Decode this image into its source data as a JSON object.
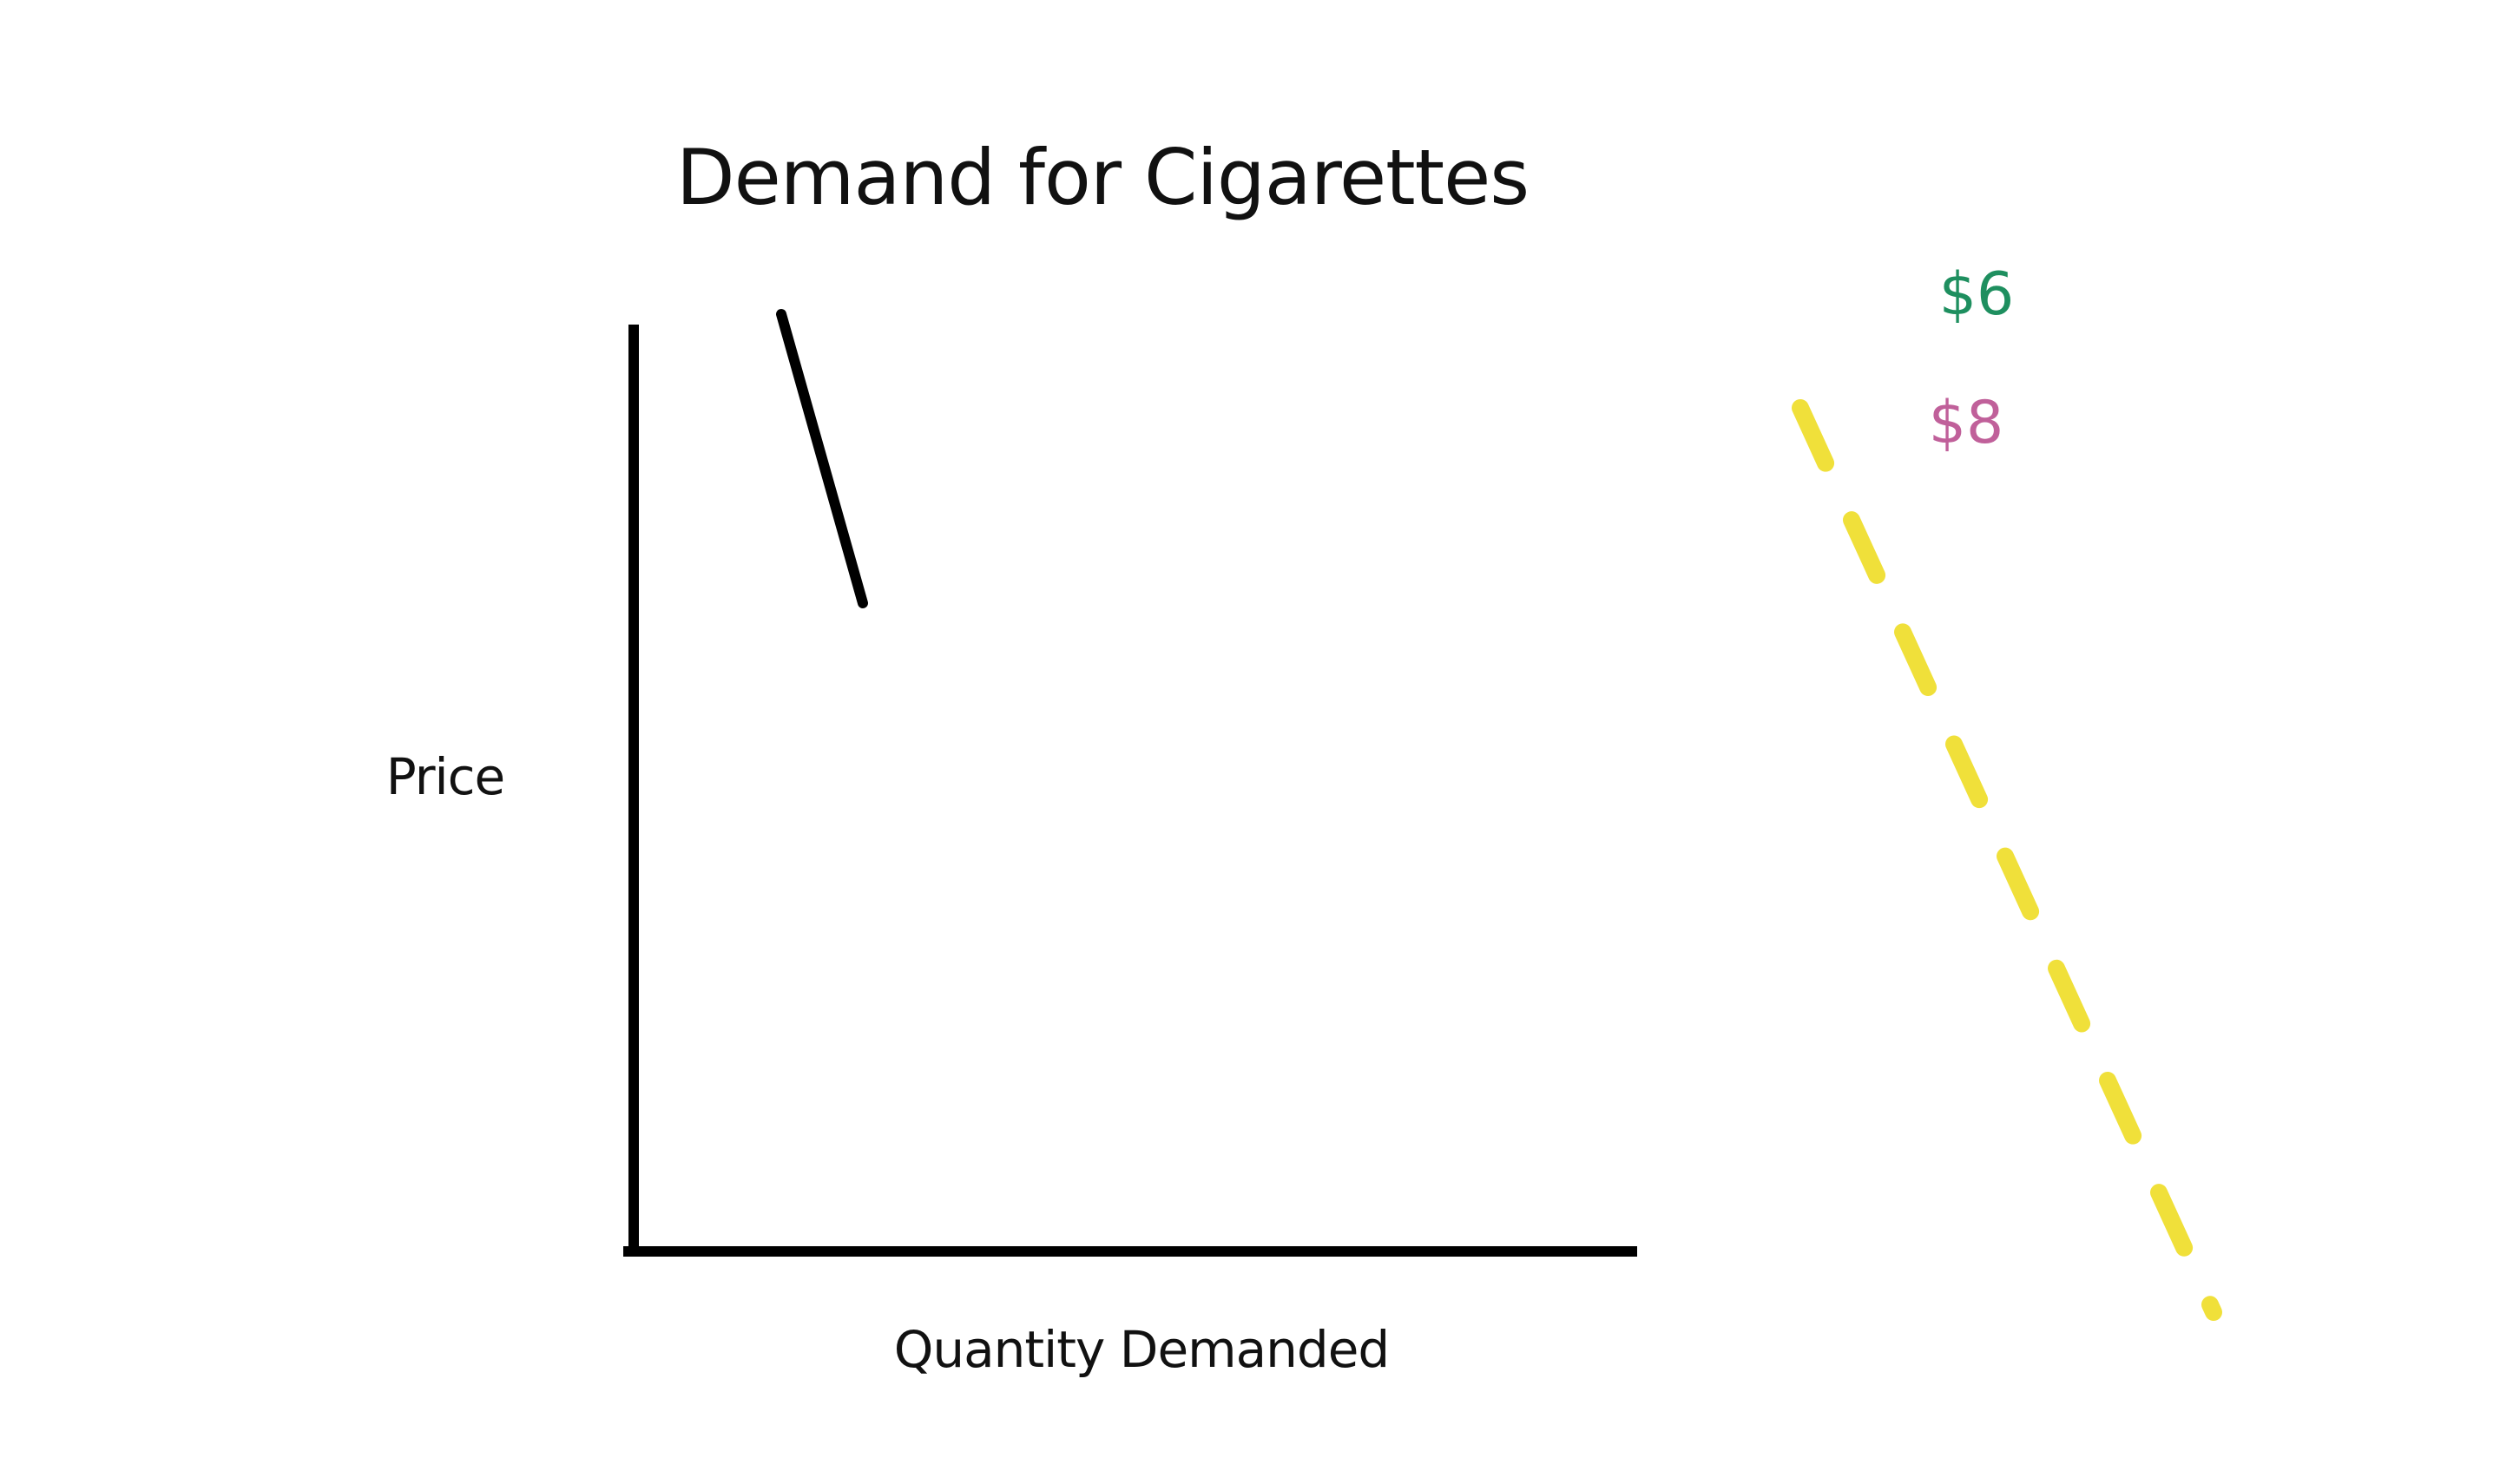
{
  "chart_data": {
    "type": "line",
    "title": "Demand for Cigarettes",
    "xlabel": "Quantity Demanded",
    "ylabel": "Price",
    "grid": false,
    "legend": "none",
    "annotations": [
      {
        "text": "$6",
        "color": "#1e8f5f"
      },
      {
        "text": "$8",
        "color": "#c0609a"
      }
    ],
    "series": [
      {
        "style": "solid",
        "color": "#000000"
      },
      {
        "style": "dashed",
        "color": "#f0e03a"
      }
    ]
  }
}
